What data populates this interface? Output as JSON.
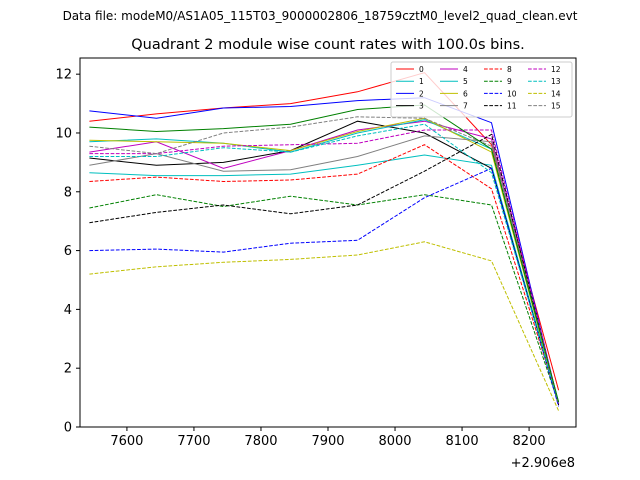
{
  "chart_data": {
    "type": "line",
    "suptitle": "Data file: modeM0/AS1A05_115T03_9000002806_18759cztM0_level2_quad_clean.evt",
    "title": "Quadrant 2 module wise count rates with 100.0s bins.",
    "xlabel": "",
    "ylabel": "",
    "x_offset_label": "+2.906e8",
    "xlim": [
      7530,
      8270
    ],
    "ylim": [
      0,
      12.55
    ],
    "xticks": [
      7600,
      7700,
      7800,
      7900,
      8000,
      8100,
      8200
    ],
    "yticks": [
      0,
      2,
      4,
      6,
      8,
      10,
      12
    ],
    "legend_position": "top-right",
    "x": [
      7544,
      7644,
      7744,
      7844,
      7944,
      8044,
      8144,
      8244
    ],
    "series": [
      {
        "name": "0",
        "color": "#ff0000",
        "dash": "solid",
        "values": [
          10.4,
          10.65,
          10.85,
          11.0,
          11.4,
          12.05,
          9.6,
          1.25
        ]
      },
      {
        "name": "1",
        "color": "#00bfbf",
        "dash": "solid",
        "values": [
          8.65,
          8.55,
          8.55,
          8.6,
          8.9,
          9.25,
          8.9,
          0.8
        ]
      },
      {
        "name": "2",
        "color": "#0000ff",
        "dash": "solid",
        "values": [
          10.75,
          10.5,
          10.85,
          10.9,
          11.1,
          11.2,
          10.35,
          0.75
        ]
      },
      {
        "name": "3",
        "color": "#000000",
        "dash": "solid",
        "values": [
          9.15,
          8.9,
          9.0,
          9.4,
          10.4,
          10.0,
          8.8,
          0.75
        ]
      },
      {
        "name": "4",
        "color": "#bf00bf",
        "dash": "solid",
        "values": [
          9.35,
          9.7,
          8.8,
          9.4,
          10.1,
          10.4,
          9.8,
          0.8
        ]
      },
      {
        "name": "5",
        "color": "#00bfbf",
        "dash": "solid",
        "values": [
          9.7,
          9.8,
          9.65,
          9.35,
          10.0,
          10.45,
          9.45,
          0.85
        ]
      },
      {
        "name": "6",
        "color": "#bfbf00",
        "dash": "solid",
        "values": [
          9.75,
          9.7,
          9.65,
          9.4,
          10.05,
          10.5,
          9.35,
          0.8
        ]
      },
      {
        "name": "7",
        "color": "#808080",
        "dash": "solid",
        "values": [
          8.9,
          9.3,
          8.7,
          8.75,
          9.2,
          9.9,
          9.7,
          0.8
        ]
      },
      {
        "name": "8",
        "color": "#ff0000",
        "dash": "dashed",
        "values": [
          8.35,
          8.5,
          8.35,
          8.4,
          8.6,
          9.6,
          8.1,
          0.85
        ]
      },
      {
        "name": "9",
        "color": "#008000",
        "dash": "dashed",
        "values": [
          7.45,
          7.9,
          7.5,
          7.85,
          7.55,
          7.9,
          7.55,
          0.8
        ]
      },
      {
        "name": "10",
        "color": "#0000ff",
        "dash": "dashed",
        "values": [
          6.0,
          6.05,
          5.95,
          6.25,
          6.35,
          7.8,
          8.8,
          0.7
        ]
      },
      {
        "name": "11",
        "color": "#000000",
        "dash": "dashed",
        "values": [
          6.95,
          7.3,
          7.55,
          7.25,
          7.55,
          8.7,
          9.95,
          0.75
        ]
      },
      {
        "name": "12",
        "color": "#bf00bf",
        "dash": "dashed",
        "values": [
          9.3,
          9.3,
          9.55,
          9.6,
          9.65,
          10.1,
          10.1,
          0.8
        ]
      },
      {
        "name": "13",
        "color": "#00bfbf",
        "dash": "dashed",
        "values": [
          9.2,
          9.2,
          9.5,
          9.35,
          9.9,
          10.3,
          8.65,
          0.8
        ]
      },
      {
        "name": "14",
        "color": "#bfbf00",
        "dash": "dashed",
        "values": [
          5.2,
          5.45,
          5.6,
          5.7,
          5.85,
          6.3,
          5.65,
          0.55
        ]
      },
      {
        "name": "15",
        "color": "#808080",
        "dash": "dashed",
        "values": [
          9.55,
          9.3,
          10.0,
          10.2,
          10.55,
          10.5,
          9.55,
          0.8
        ]
      }
    ],
    "extra_series": [
      {
        "name": "",
        "color": "#008000",
        "dash": "solid",
        "values": [
          10.2,
          10.05,
          10.15,
          10.3,
          10.8,
          10.95,
          9.45,
          0.85
        ]
      }
    ]
  }
}
